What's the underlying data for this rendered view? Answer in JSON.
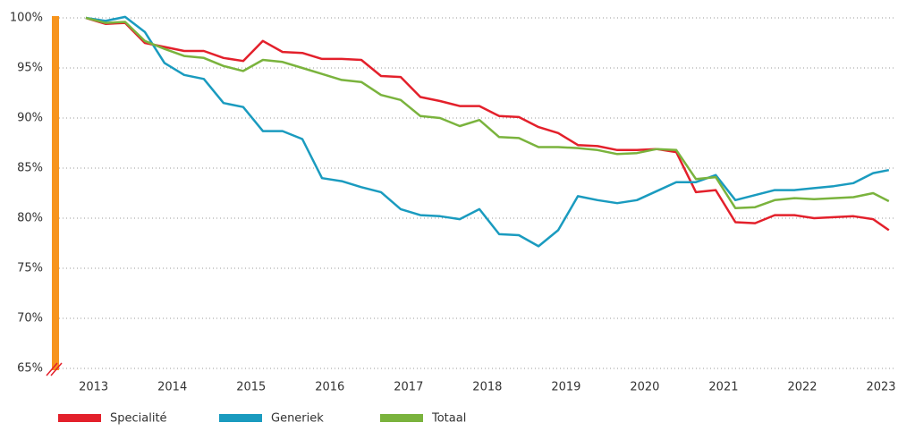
{
  "chart_data": {
    "type": "line",
    "x": [
      2012.9,
      2013.15,
      2013.4,
      2013.65,
      2013.9,
      2014.15,
      2014.4,
      2014.65,
      2014.9,
      2015.15,
      2015.4,
      2015.65,
      2015.9,
      2016.15,
      2016.4,
      2016.65,
      2016.9,
      2017.15,
      2017.4,
      2017.65,
      2017.9,
      2018.15,
      2018.4,
      2018.65,
      2018.9,
      2019.15,
      2019.4,
      2019.65,
      2019.9,
      2020.15,
      2020.4,
      2020.65,
      2020.9,
      2021.15,
      2021.4,
      2021.65,
      2021.9,
      2022.15,
      2022.4,
      2022.65,
      2022.9,
      2023.1
    ],
    "series": [
      {
        "name": "Specialité",
        "color": "#e3202b",
        "values": [
          100,
          99.4,
          99.5,
          97.5,
          97.1,
          96.7,
          96.7,
          96.0,
          95.7,
          97.7,
          96.6,
          96.5,
          95.9,
          95.9,
          95.8,
          94.2,
          94.1,
          92.1,
          91.7,
          91.2,
          91.2,
          90.2,
          90.1,
          89.1,
          88.5,
          87.3,
          87.2,
          86.8,
          86.8,
          86.9,
          86.6,
          82.6,
          82.8,
          79.6,
          79.5,
          80.3,
          80.3,
          80.0,
          80.1,
          80.2,
          79.9,
          78.8
        ]
      },
      {
        "name": "Generiek",
        "color": "#1a9bbf",
        "values": [
          100,
          99.7,
          100.1,
          98.6,
          95.5,
          94.3,
          93.9,
          91.5,
          91.1,
          88.7,
          88.7,
          87.9,
          84.0,
          83.7,
          83.1,
          82.6,
          80.9,
          80.3,
          80.2,
          79.9,
          80.9,
          78.4,
          78.3,
          77.2,
          78.8,
          82.2,
          81.8,
          81.5,
          81.8,
          82.7,
          83.6,
          83.6,
          84.3,
          81.8,
          82.3,
          82.8,
          82.8,
          83.0,
          83.2,
          83.5,
          84.5,
          84.8
        ]
      },
      {
        "name": "Totaal",
        "color": "#7ab33d",
        "values": [
          100,
          99.5,
          99.6,
          97.7,
          96.9,
          96.2,
          96.0,
          95.2,
          94.7,
          95.8,
          95.6,
          95.0,
          94.4,
          93.8,
          93.6,
          92.3,
          91.8,
          90.2,
          90.0,
          89.2,
          89.8,
          88.1,
          88.0,
          87.1,
          87.1,
          87.0,
          86.8,
          86.4,
          86.5,
          86.9,
          86.8,
          83.9,
          84.1,
          81.0,
          81.1,
          81.8,
          82.0,
          81.9,
          82.0,
          82.1,
          82.5,
          81.7
        ]
      }
    ],
    "xlim": [
      2012.47,
      2023.17
    ],
    "xticks": [
      2013,
      2014,
      2015,
      2016,
      2017,
      2018,
      2019,
      2020,
      2021,
      2022,
      2023
    ],
    "ylim": [
      65,
      100
    ],
    "yticks": [
      {
        "value": 65,
        "label": "65%"
      },
      {
        "value": 70,
        "label": "70%"
      },
      {
        "value": 75,
        "label": "75%"
      },
      {
        "value": 80,
        "label": "80%"
      },
      {
        "value": 85,
        "label": "85%"
      },
      {
        "value": 90,
        "label": "90%"
      },
      {
        "value": 95,
        "label": "95%"
      },
      {
        "value": 100,
        "label": "100%"
      }
    ],
    "grid": true
  }
}
